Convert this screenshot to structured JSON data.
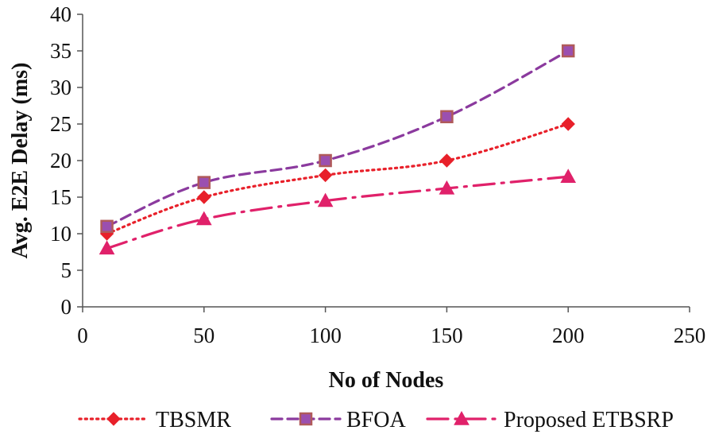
{
  "chart_data": {
    "type": "line",
    "title": "",
    "xlabel": "No of Nodes",
    "ylabel": "Avg. E2E Delay (ms)",
    "xlim": [
      0,
      250
    ],
    "ylim": [
      0,
      40
    ],
    "xticks": [
      0,
      50,
      100,
      150,
      200,
      250
    ],
    "yticks": [
      0,
      5,
      10,
      15,
      20,
      25,
      30,
      35,
      40
    ],
    "grid": false,
    "legend_position": "bottom",
    "x": [
      10,
      50,
      100,
      150,
      200
    ],
    "series": [
      {
        "name": "TBSMR",
        "values": [
          10,
          15,
          18,
          20,
          25
        ],
        "color": "#e8202a",
        "dash": "dotted",
        "marker": "diamond"
      },
      {
        "name": "BFOA",
        "values": [
          11,
          17,
          20,
          26,
          35
        ],
        "color": "#8b3a9e",
        "dash": "dashed",
        "marker": "square"
      },
      {
        "name": "Proposed ETBSRP",
        "values": [
          8,
          12,
          14.5,
          16.2,
          17.8
        ],
        "color": "#e0216a",
        "dash": "dashdot",
        "marker": "triangle"
      }
    ]
  }
}
